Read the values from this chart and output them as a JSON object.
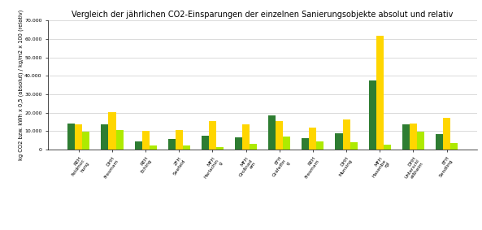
{
  "title": "Vergleich der jährlichen CO2-Einsparungen der einzelnen Sanierungsobjekte absolut und relativ",
  "ylabel": "kg CO2 bzw. kWh x 0,5 (absolut) / kg/m2 x 100 (relativ)",
  "ylim": [
    0,
    70000
  ],
  "yticks": [
    0,
    10000,
    20000,
    30000,
    40000,
    50000,
    60000,
    70000
  ],
  "ytick_labels": [
    "0",
    "10.000",
    "20.000",
    "30.000",
    "40.000",
    "50.000",
    "60.000",
    "70.000"
  ],
  "categories": [
    "REH\nFeldmoc\nhung",
    "DHH\nFresmarn",
    "REH\nEching",
    "ZFH\nSeefeld",
    "MFH\nHarlachin\ng",
    "MFH\nGroßnad\nem",
    "EFH\nGräfelfin\ng",
    "REH\nFresmarn",
    "DHH\nMunsing",
    "MFH\nHasenbe\nrgl",
    "DHH\nUnterschl\neißheim",
    "EFH\nSendling"
  ],
  "bar1_values": [
    14000,
    13500,
    4500,
    5500,
    7500,
    6500,
    18500,
    6000,
    9000,
    37500,
    13500,
    8500
  ],
  "bar2_values": [
    13500,
    20500,
    10000,
    10500,
    15500,
    13500,
    15500,
    12000,
    16500,
    62000,
    14000,
    17000
  ],
  "bar3_values": [
    9500,
    10500,
    2000,
    2000,
    1500,
    3000,
    7000,
    4500,
    4000,
    2500,
    9500,
    3500
  ],
  "color1": "#2e7d32",
  "color2": "#ffd600",
  "color3": "#aeea00",
  "bar_width": 0.22,
  "background_color": "#ffffff",
  "grid_color": "#cccccc",
  "title_fontsize": 7.0,
  "ylabel_fontsize": 4.8,
  "tick_fontsize": 4.5,
  "xtick_fontsize": 4.2
}
